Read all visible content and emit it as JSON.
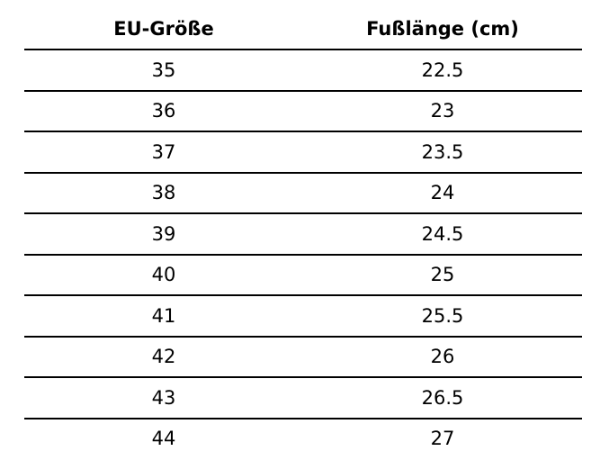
{
  "table": {
    "header": [
      "EU-Größe",
      "Fußlänge (cm)"
    ],
    "rows": [
      [
        35,
        22.5
      ],
      [
        36,
        23
      ],
      [
        37,
        23.5
      ],
      [
        38,
        24
      ],
      [
        39,
        24.5
      ],
      [
        40,
        25
      ],
      [
        41,
        25.5
      ],
      [
        42,
        26
      ],
      [
        43,
        26.5
      ],
      [
        44,
        27
      ]
    ]
  }
}
